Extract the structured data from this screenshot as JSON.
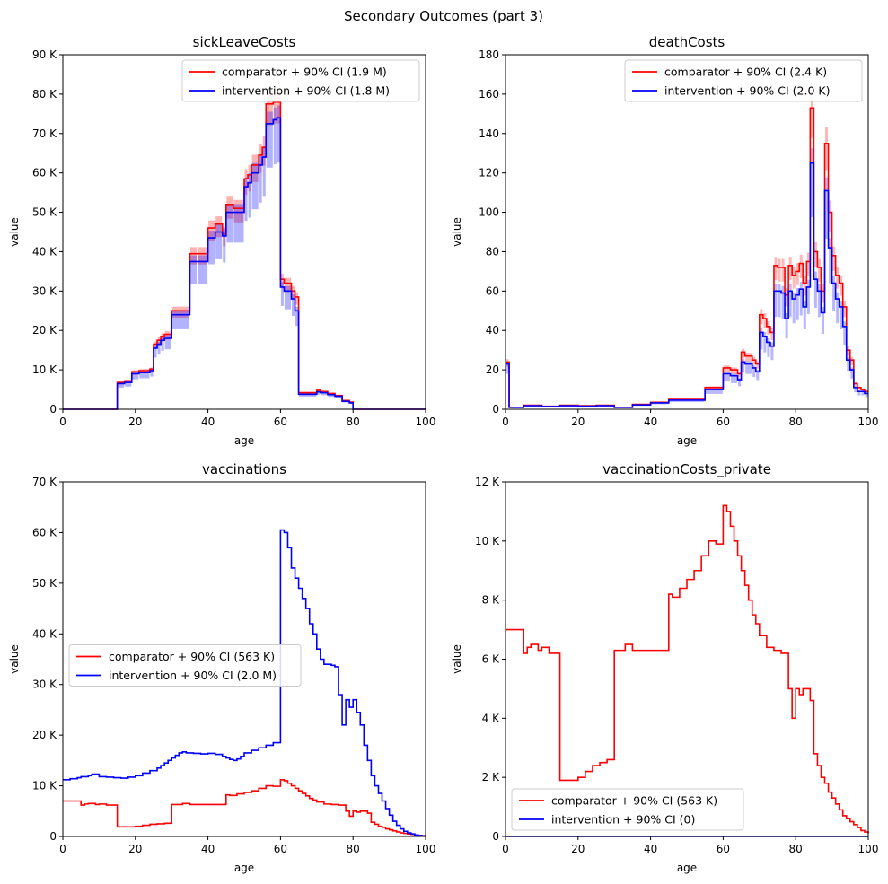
{
  "figure": {
    "title": "Secondary Outcomes (part 3)"
  },
  "colors": {
    "comparator": "#ff0000",
    "intervention": "#0000ff",
    "comparator_band": "#ff0000",
    "intervention_band": "#0000ff"
  },
  "chart_data": [
    {
      "type": "line",
      "title": "sickLeaveCosts",
      "xlabel": "age",
      "ylabel": "value",
      "xlim": [
        0,
        100
      ],
      "ylim": [
        0,
        90000
      ],
      "xticks": [
        0,
        20,
        40,
        60,
        80,
        100
      ],
      "xticklabels": [
        "0",
        "20",
        "40",
        "60",
        "80",
        "100"
      ],
      "yticks": [
        0,
        10000,
        20000,
        30000,
        40000,
        50000,
        60000,
        70000,
        80000,
        90000
      ],
      "yticklabels": [
        "0",
        "10 K",
        "20 K",
        "30 K",
        "40 K",
        "50 K",
        "60 K",
        "70 K",
        "80 K",
        "90 K"
      ],
      "legend_loc": "top-right",
      "series": [
        {
          "name": "comparator + 90% CI (1.9 M)",
          "color": "#ff0000",
          "x": [
            0,
            15,
            17,
            19,
            21,
            24,
            25,
            26,
            27,
            28,
            30,
            35,
            37,
            40,
            42,
            44,
            45,
            47,
            50,
            51,
            52,
            54,
            55,
            56,
            58,
            59,
            60,
            61,
            63,
            64,
            65,
            70,
            71,
            73,
            75,
            77,
            79,
            80,
            100
          ],
          "y": [
            0,
            6800,
            7200,
            9500,
            9800,
            10200,
            16500,
            17500,
            18500,
            19000,
            25000,
            39500,
            39500,
            46000,
            47000,
            44500,
            52000,
            51000,
            58500,
            59500,
            62000,
            64500,
            66500,
            77500,
            78000,
            78000,
            33000,
            32000,
            30000,
            28500,
            4200,
            4800,
            4500,
            4000,
            3500,
            2200,
            1800,
            0,
            0
          ]
        },
        {
          "name": "intervention + 90% CI (1.8 M)",
          "color": "#0000ff",
          "x": [
            0,
            15,
            17,
            19,
            21,
            24,
            25,
            26,
            27,
            28,
            30,
            35,
            37,
            40,
            42,
            44,
            45,
            47,
            50,
            51,
            52,
            54,
            55,
            56,
            58,
            59,
            60,
            61,
            63,
            64,
            65,
            70,
            71,
            73,
            75,
            77,
            79,
            80,
            100
          ],
          "y": [
            0,
            6500,
            6800,
            9000,
            9300,
            9800,
            15500,
            16500,
            17500,
            18000,
            24000,
            37500,
            37500,
            43500,
            45000,
            44000,
            50000,
            50000,
            56500,
            57500,
            60000,
            62000,
            64000,
            72500,
            73500,
            74000,
            31000,
            30000,
            28000,
            25000,
            3800,
            4400,
            4200,
            3700,
            3300,
            2000,
            1600,
            0,
            0
          ]
        }
      ]
    },
    {
      "type": "line",
      "title": "deathCosts",
      "xlabel": "age",
      "ylabel": "value",
      "xlim": [
        0,
        100
      ],
      "ylim": [
        0,
        180
      ],
      "xticks": [
        0,
        20,
        40,
        60,
        80,
        100
      ],
      "xticklabels": [
        "0",
        "20",
        "40",
        "60",
        "80",
        "100"
      ],
      "yticks": [
        0,
        20,
        40,
        60,
        80,
        100,
        120,
        140,
        160,
        180
      ],
      "yticklabels": [
        "0",
        "20",
        "40",
        "60",
        "80",
        "100",
        "120",
        "140",
        "160",
        "180"
      ],
      "legend_loc": "top-right",
      "series": [
        {
          "name": "comparator + 90% CI (2.4 K)",
          "color": "#ff0000",
          "x": [
            0,
            1,
            5,
            10,
            15,
            20,
            25,
            30,
            35,
            40,
            45,
            55,
            60,
            62,
            64,
            65,
            66,
            68,
            69,
            70,
            71,
            72,
            73,
            74,
            75,
            76,
            77,
            78,
            79,
            80,
            81,
            82,
            83,
            84,
            85,
            86,
            87,
            88,
            89,
            90,
            91,
            92,
            93,
            94,
            95,
            96,
            97,
            98,
            99,
            100
          ],
          "y": [
            24,
            1,
            2,
            1.5,
            2,
            1.8,
            2,
            1,
            2.5,
            3.5,
            5,
            11,
            21,
            20,
            18,
            29,
            27,
            25,
            23,
            48,
            46,
            42,
            39,
            73,
            72,
            72,
            58,
            73,
            68,
            70,
            74,
            64,
            75,
            153,
            80,
            72,
            60,
            135,
            100,
            78,
            68,
            64,
            52,
            30,
            25,
            13,
            11,
            10,
            9,
            9
          ]
        },
        {
          "name": "intervention + 90% CI (2.0 K)",
          "color": "#0000ff",
          "x": [
            0,
            1,
            5,
            10,
            15,
            20,
            25,
            30,
            35,
            40,
            45,
            55,
            60,
            62,
            64,
            65,
            66,
            68,
            69,
            70,
            71,
            72,
            73,
            74,
            75,
            76,
            77,
            78,
            79,
            80,
            81,
            82,
            83,
            84,
            85,
            86,
            87,
            88,
            89,
            90,
            91,
            92,
            93,
            94,
            95,
            96,
            97,
            98,
            99,
            100
          ],
          "y": [
            23,
            1,
            1.8,
            1.4,
            1.8,
            1.6,
            1.8,
            1,
            2.2,
            3.2,
            4.6,
            10,
            18,
            17,
            15,
            24,
            23,
            21,
            19,
            39,
            37,
            34,
            32,
            60,
            60,
            59,
            46,
            60,
            56,
            58,
            61,
            52,
            62,
            125,
            66,
            60,
            49,
            111,
            82,
            64,
            56,
            52,
            42,
            25,
            20,
            11,
            9,
            9,
            8,
            8
          ]
        }
      ]
    },
    {
      "type": "line",
      "title": "vaccinations",
      "xlabel": "age",
      "ylabel": "value",
      "xlim": [
        0,
        100
      ],
      "ylim": [
        0,
        70000
      ],
      "xticks": [
        0,
        20,
        40,
        60,
        80,
        100
      ],
      "xticklabels": [
        "0",
        "20",
        "40",
        "60",
        "80",
        "100"
      ],
      "yticks": [
        0,
        10000,
        20000,
        30000,
        40000,
        50000,
        60000,
        70000
      ],
      "yticklabels": [
        "0",
        "10 K",
        "20 K",
        "30 K",
        "40 K",
        "50 K",
        "60 K",
        "70 K"
      ],
      "legend_loc": "center-left",
      "series": [
        {
          "name": "comparator + 90% CI (563 K)",
          "color": "#ff0000",
          "x": [
            0,
            5,
            6,
            7,
            9,
            10,
            12,
            15,
            20,
            22,
            24,
            26,
            28,
            30,
            33,
            35,
            45,
            46,
            48,
            50,
            52,
            54,
            56,
            58,
            60,
            61,
            62,
            63,
            64,
            65,
            66,
            67,
            68,
            69,
            70,
            72,
            74,
            76,
            78,
            79,
            80,
            81,
            82,
            84,
            85,
            86,
            87,
            88,
            89,
            90,
            91,
            92,
            93,
            94,
            95,
            96,
            97,
            98,
            99,
            100
          ],
          "y": [
            7000,
            6200,
            6400,
            6500,
            6300,
            6400,
            6200,
            1900,
            2000,
            2200,
            2400,
            2500,
            2600,
            6300,
            6500,
            6300,
            8200,
            8100,
            8400,
            8700,
            9000,
            9500,
            10000,
            9900,
            11200,
            11000,
            10500,
            10000,
            9500,
            9000,
            8500,
            8000,
            7500,
            7200,
            6800,
            6400,
            6300,
            6200,
            5000,
            4000,
            5000,
            4800,
            5000,
            4600,
            2800,
            2400,
            2000,
            1800,
            1500,
            1300,
            1100,
            900,
            700,
            600,
            500,
            400,
            300,
            200,
            150,
            100
          ]
        },
        {
          "name": "intervention + 90% CI (2.0 M)",
          "color": "#0000ff",
          "x": [
            0,
            2,
            4,
            5,
            7,
            8,
            10,
            12,
            14,
            16,
            18,
            20,
            22,
            24,
            26,
            27,
            28,
            29,
            30,
            31,
            32,
            33,
            34,
            36,
            38,
            40,
            42,
            44,
            45,
            46,
            47,
            48,
            49,
            50,
            52,
            54,
            56,
            58,
            60,
            61,
            62,
            63,
            64,
            65,
            66,
            67,
            68,
            69,
            70,
            71,
            72,
            73,
            74,
            75,
            76,
            77,
            78,
            79,
            80,
            81,
            82,
            83,
            84,
            85,
            86,
            87,
            88,
            89,
            90,
            91,
            92,
            93,
            94,
            95,
            96,
            97,
            98,
            99,
            100
          ],
          "y": [
            11200,
            11400,
            11600,
            11800,
            12000,
            12300,
            11800,
            11700,
            11600,
            11500,
            11700,
            12000,
            12500,
            13000,
            13500,
            14000,
            14500,
            15000,
            15500,
            16000,
            16500,
            16700,
            16500,
            16400,
            16300,
            16400,
            16200,
            15800,
            15500,
            15200,
            15000,
            15300,
            15800,
            16500,
            17000,
            17500,
            18000,
            18500,
            60500,
            60000,
            57000,
            53000,
            51000,
            49000,
            47000,
            45000,
            42000,
            40000,
            37000,
            35000,
            34000,
            34000,
            33800,
            33500,
            28000,
            22000,
            27000,
            25500,
            27000,
            24500,
            22000,
            18000,
            15000,
            12000,
            10000,
            8500,
            7000,
            5500,
            4200,
            3000,
            2200,
            1500,
            1000,
            700,
            500,
            300,
            200,
            100,
            50
          ]
        }
      ]
    },
    {
      "type": "line",
      "title": "vaccinationCosts_private",
      "xlabel": "age",
      "ylabel": "value",
      "xlim": [
        0,
        100
      ],
      "ylim": [
        0,
        12000
      ],
      "xticks": [
        0,
        20,
        40,
        60,
        80,
        100
      ],
      "xticklabels": [
        "0",
        "20",
        "40",
        "60",
        "80",
        "100"
      ],
      "yticks": [
        0,
        2000,
        4000,
        6000,
        8000,
        10000,
        12000
      ],
      "yticklabels": [
        "0",
        "2 K",
        "4 K",
        "6 K",
        "8 K",
        "10 K",
        "12 K"
      ],
      "legend_loc": "bottom-left",
      "series": [
        {
          "name": "comparator + 90% CI (563 K)",
          "color": "#ff0000",
          "x": [
            0,
            5,
            6,
            7,
            9,
            10,
            12,
            15,
            20,
            22,
            24,
            26,
            28,
            30,
            33,
            35,
            45,
            46,
            48,
            50,
            52,
            54,
            56,
            58,
            60,
            61,
            62,
            63,
            64,
            65,
            66,
            67,
            68,
            69,
            70,
            72,
            74,
            76,
            78,
            79,
            80,
            81,
            82,
            84,
            85,
            86,
            87,
            88,
            89,
            90,
            91,
            92,
            93,
            94,
            95,
            96,
            97,
            98,
            99,
            100
          ],
          "y": [
            7000,
            6200,
            6400,
            6500,
            6300,
            6400,
            6200,
            1900,
            2000,
            2200,
            2400,
            2500,
            2600,
            6300,
            6500,
            6300,
            8200,
            8100,
            8400,
            8700,
            9000,
            9500,
            10000,
            9900,
            11200,
            11000,
            10500,
            10000,
            9500,
            9000,
            8500,
            8000,
            7500,
            7200,
            6800,
            6400,
            6300,
            6200,
            5000,
            4000,
            5000,
            4800,
            5000,
            4600,
            2800,
            2400,
            2000,
            1800,
            1500,
            1300,
            1100,
            900,
            700,
            600,
            500,
            400,
            300,
            200,
            150,
            100
          ]
        },
        {
          "name": "intervention + 90% CI (0)",
          "color": "#0000ff",
          "x": [
            0,
            100
          ],
          "y": [
            0,
            0
          ]
        }
      ]
    }
  ]
}
